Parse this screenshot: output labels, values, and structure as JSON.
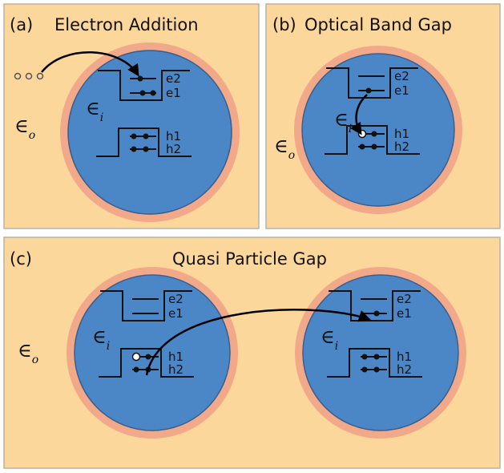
{
  "panels": [
    {
      "label": "(a)",
      "title": "Electron Addition"
    },
    {
      "label": "(b)",
      "title": "Optical Band Gap"
    },
    {
      "label": "(c)",
      "title": "Quasi Particle Gap"
    }
  ],
  "levels": {
    "e2": "e2",
    "e1": "e1",
    "h1": "h1",
    "h2": "h2"
  },
  "epsilon_inner": {
    "symbol": "∈",
    "subscript": "i"
  },
  "epsilon_outer": {
    "symbol": "∈",
    "subscript": "o"
  }
}
